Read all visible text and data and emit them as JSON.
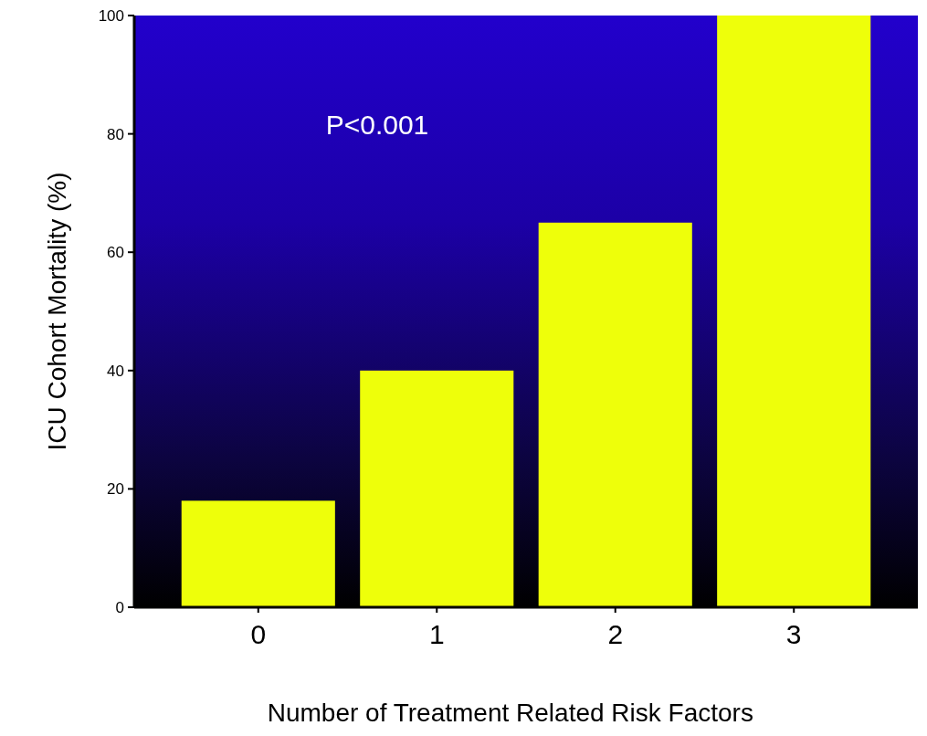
{
  "chart_data": {
    "type": "bar",
    "xlabel": "Number of Treatment Related Risk Factors",
    "ylabel": "ICU Cohort  Mortality (%)",
    "categories": [
      "0",
      "1",
      "2",
      "3"
    ],
    "values": [
      18,
      40,
      65,
      100
    ],
    "color": "#eeff0a",
    "ylim": [
      0,
      100
    ],
    "yticks": [
      0,
      20,
      40,
      60,
      80,
      100
    ],
    "grid": false,
    "annotations": [
      "P<0.001"
    ]
  }
}
